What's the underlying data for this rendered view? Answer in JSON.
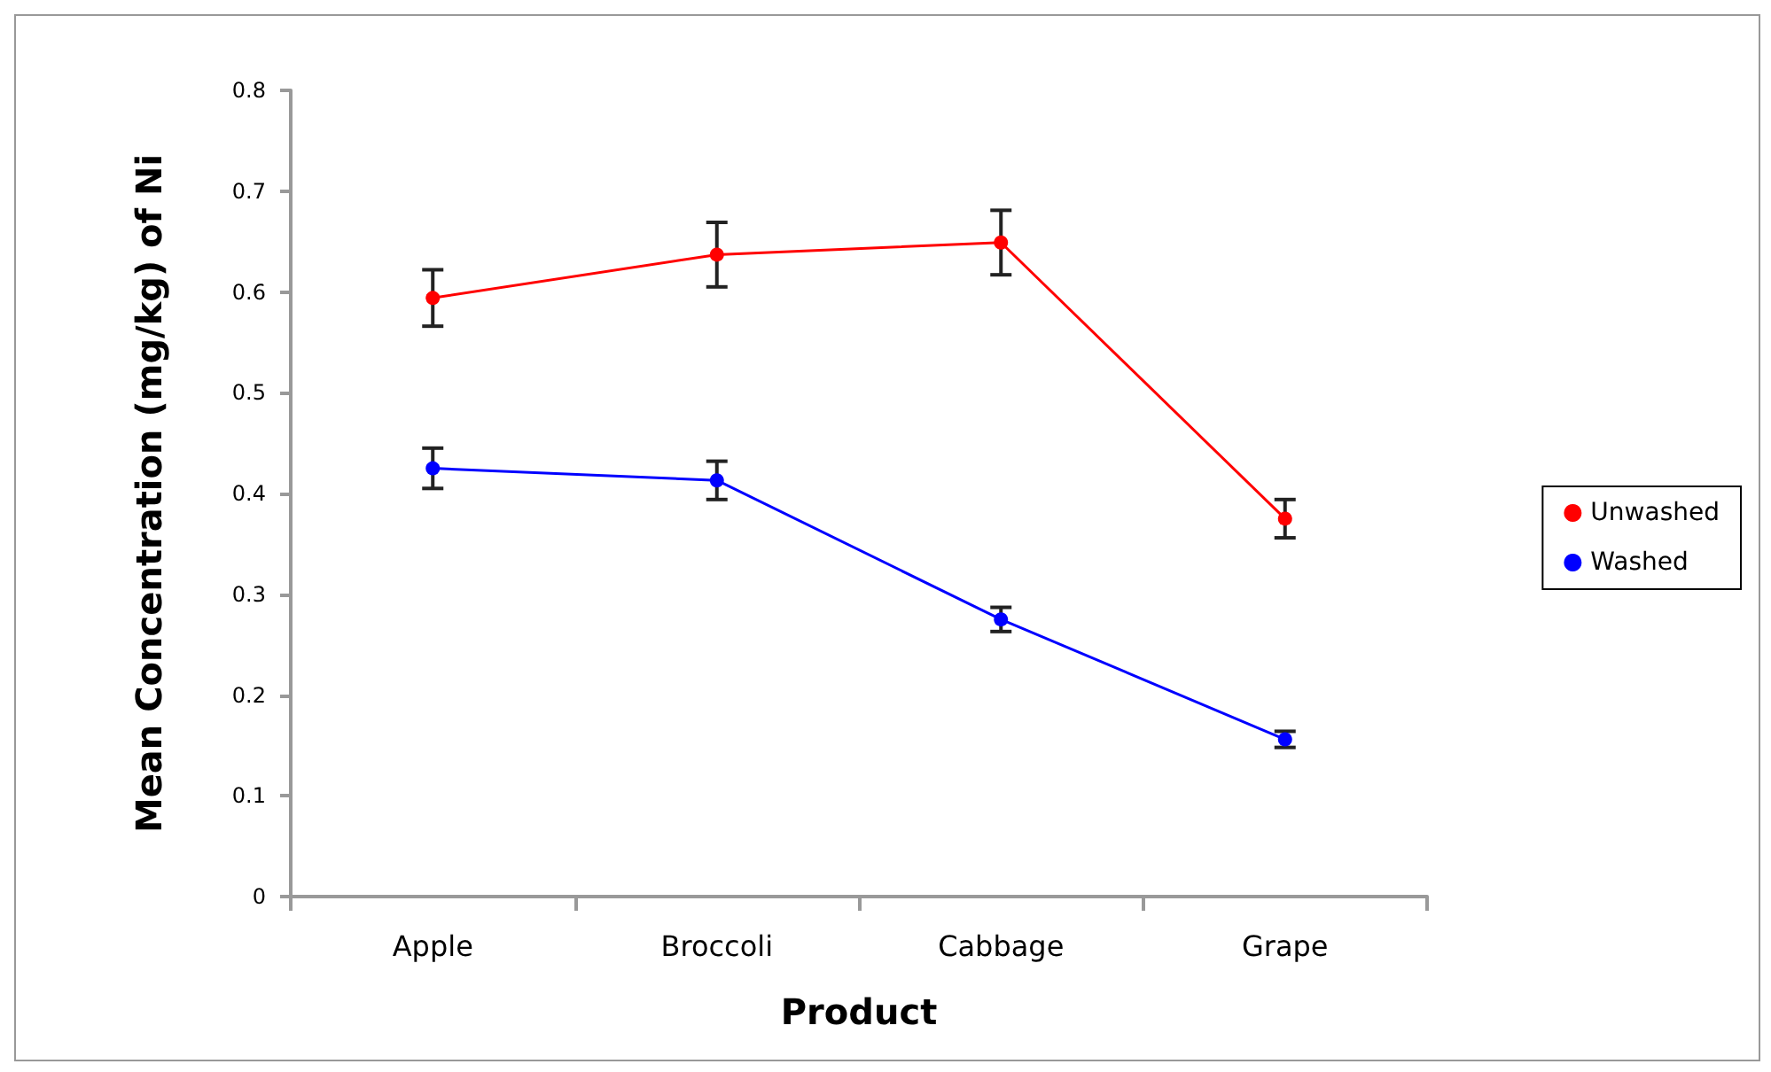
{
  "chart_data": {
    "type": "line",
    "xlabel": "Product",
    "ylabel": "Mean Concentration (mg/kg) of Ni",
    "categories": [
      "Apple",
      "Broccoli",
      "Cabbage",
      "Grape"
    ],
    "series": [
      {
        "name": "Unwashed",
        "color": "#ff0000",
        "values": [
          0.594,
          0.637,
          0.649,
          0.375
        ],
        "errors": [
          0.028,
          0.032,
          0.032,
          0.019
        ]
      },
      {
        "name": "Washed",
        "color": "#0000ff",
        "values": [
          0.425,
          0.413,
          0.275,
          0.156
        ],
        "errors": [
          0.02,
          0.019,
          0.012,
          0.008
        ]
      }
    ],
    "ylim": [
      0,
      0.8
    ],
    "yticks": [
      0,
      0.1,
      0.2,
      0.3,
      0.4,
      0.5,
      0.6,
      0.7,
      0.8
    ],
    "grid": false,
    "legend": "right",
    "marker": "circle",
    "line_style": "solid"
  }
}
